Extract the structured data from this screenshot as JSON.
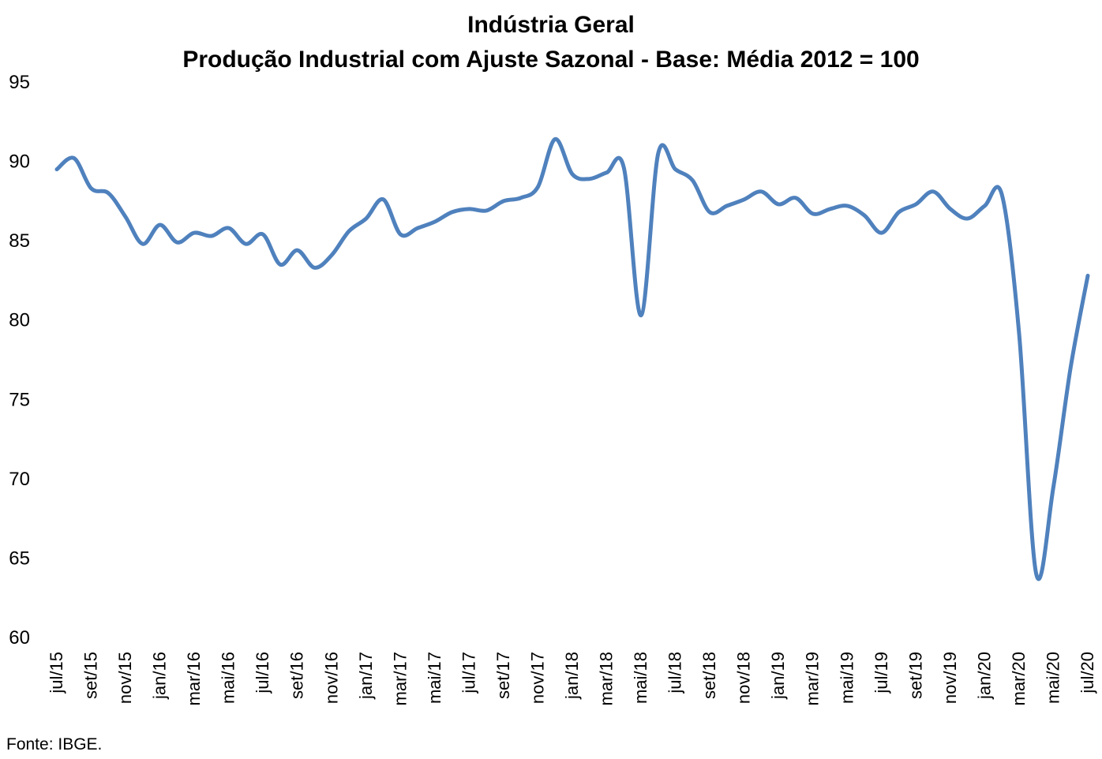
{
  "chart_data": {
    "type": "line",
    "title": "Indústria Geral",
    "subtitle": "Produção Industrial com Ajuste Sazonal - Base: Média 2012 = 100",
    "xlabel": "",
    "ylabel": "",
    "ylim": [
      60,
      95
    ],
    "yticks": [
      60,
      65,
      70,
      75,
      80,
      85,
      90,
      95
    ],
    "grid": false,
    "x_tick_labels": [
      "jul/15",
      "set/15",
      "nov/15",
      "jan/16",
      "mar/16",
      "mai/16",
      "jul/16",
      "set/16",
      "nov/16",
      "jan/17",
      "mar/17",
      "mai/17",
      "jul/17",
      "set/17",
      "nov/17",
      "jan/18",
      "mar/18",
      "mai/18",
      "jul/18",
      "set/18",
      "nov/18",
      "jan/19",
      "mar/19",
      "mai/19",
      "jul/19",
      "set/19",
      "nov/19",
      "jan/20",
      "mar/20",
      "mai/20",
      "jul/20"
    ],
    "series": [
      {
        "color": "#4F81BD",
        "x": [
          "jul/15",
          "ago/15",
          "set/15",
          "out/15",
          "nov/15",
          "dez/15",
          "jan/16",
          "fev/16",
          "mar/16",
          "abr/16",
          "mai/16",
          "jun/16",
          "jul/16",
          "ago/16",
          "set/16",
          "out/16",
          "nov/16",
          "dez/16",
          "jan/17",
          "fev/17",
          "mar/17",
          "abr/17",
          "mai/17",
          "jun/17",
          "jul/17",
          "ago/17",
          "set/17",
          "out/17",
          "nov/17",
          "dez/17",
          "jan/18",
          "fev/18",
          "mar/18",
          "abr/18",
          "mai/18",
          "jun/18",
          "jul/18",
          "ago/18",
          "set/18",
          "out/18",
          "nov/18",
          "dez/18",
          "jan/19",
          "fev/19",
          "mar/19",
          "abr/19",
          "mai/19",
          "jun/19",
          "jul/19",
          "ago/19",
          "set/19",
          "out/19",
          "nov/19",
          "dez/19",
          "jan/20",
          "fev/20",
          "mar/20",
          "abr/20",
          "mai/20",
          "jun/20",
          "jul/20"
        ],
        "values": [
          89.5,
          90.2,
          88.3,
          88.0,
          86.5,
          84.8,
          86.0,
          84.9,
          85.5,
          85.3,
          85.8,
          84.8,
          85.4,
          83.5,
          84.4,
          83.3,
          84.1,
          85.6,
          86.4,
          87.6,
          85.4,
          85.8,
          86.2,
          86.8,
          87.0,
          86.9,
          87.5,
          87.7,
          88.4,
          91.4,
          89.2,
          88.9,
          89.3,
          89.6,
          80.3,
          90.5,
          89.5,
          88.8,
          86.8,
          87.2,
          87.6,
          88.1,
          87.3,
          87.7,
          86.7,
          87.0,
          87.2,
          86.6,
          85.5,
          86.8,
          87.3,
          88.1,
          87.0,
          86.4,
          87.2,
          87.9,
          79.2,
          64.0,
          69.5,
          77.0,
          82.8
        ]
      }
    ]
  },
  "source": "Fonte: IBGE."
}
